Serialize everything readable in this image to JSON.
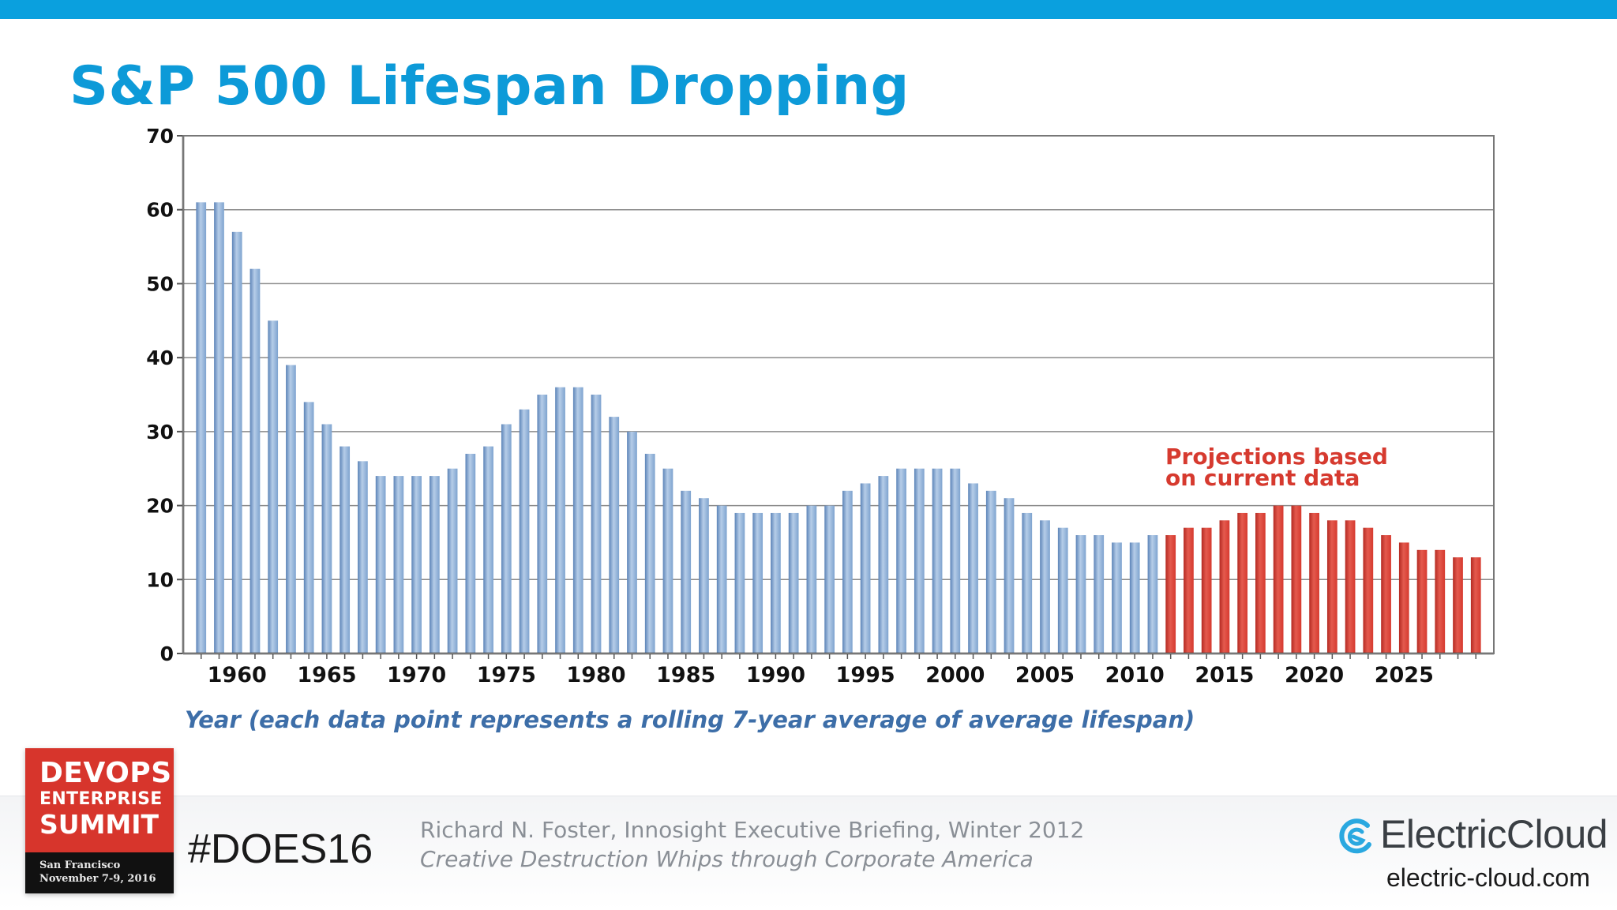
{
  "slide": {
    "title": "S&P 500 Lifespan Dropping",
    "accent_color": "#0aa0de"
  },
  "chart_data": {
    "type": "bar",
    "xlabel": "Year (each data point represents a rolling 7-year average of average lifespan)",
    "ylabel": "",
    "ylim": [
      0,
      70
    ],
    "yticks": [
      0,
      10,
      20,
      30,
      40,
      50,
      60,
      70
    ],
    "xticks": [
      1960,
      1965,
      1970,
      1975,
      1980,
      1985,
      1990,
      1995,
      2000,
      2005,
      2010,
      2015,
      2020,
      2025
    ],
    "grid": true,
    "annotation": {
      "text_line1": "Projections based",
      "text_line2": "on current data",
      "color": "#d63a2f"
    },
    "series": [
      {
        "kind": "historical",
        "color": "#7ea3cf",
        "x": [
          1958,
          1959,
          1960,
          1961,
          1962,
          1963,
          1964,
          1965,
          1966,
          1967,
          1968,
          1969,
          1970,
          1971,
          1972,
          1973,
          1974,
          1975,
          1976,
          1977,
          1978,
          1979,
          1980,
          1981,
          1982,
          1983,
          1984,
          1985,
          1986,
          1987,
          1988,
          1989,
          1990,
          1991,
          1992,
          1993,
          1994,
          1995,
          1996,
          1997,
          1998,
          1999,
          2000,
          2001,
          2002,
          2003,
          2004,
          2005,
          2006,
          2007,
          2008,
          2009,
          2010,
          2011
        ],
        "values": [
          61,
          61,
          57,
          52,
          45,
          39,
          34,
          31,
          28,
          26,
          24,
          24,
          24,
          24,
          25,
          27,
          28,
          31,
          33,
          35,
          36,
          36,
          35,
          32,
          30,
          27,
          25,
          22,
          21,
          20,
          19,
          19,
          19,
          19,
          20,
          20,
          22,
          23,
          24,
          25,
          25,
          25,
          25,
          23,
          22,
          21,
          19,
          18,
          17,
          16,
          16,
          15,
          15,
          16
        ]
      },
      {
        "kind": "projection",
        "color": "#d63a2f",
        "x": [
          2012,
          2013,
          2014,
          2015,
          2016,
          2017,
          2018,
          2019,
          2020,
          2021,
          2022,
          2023,
          2024,
          2025,
          2026,
          2027,
          2028,
          2029
        ],
        "values": [
          16,
          17,
          17,
          18,
          19,
          19,
          20,
          20,
          19,
          18,
          18,
          17,
          16,
          15,
          14,
          14,
          13,
          13
        ]
      }
    ]
  },
  "footer": {
    "logo": {
      "line1": "DEVOPS",
      "line2": "ENTERPRISE",
      "line3": "SUMMIT",
      "city": "San Francisco",
      "dates": "November 7-9, 2016"
    },
    "hashtag": "#DOES16",
    "citation_line1": "Richard N. Foster, Innosight Executive Briefing, Winter 2012",
    "citation_line2": "Creative Destruction Whips through Corporate America",
    "brand_name": "ElectricCloud",
    "brand_url": "electric-cloud.com"
  }
}
